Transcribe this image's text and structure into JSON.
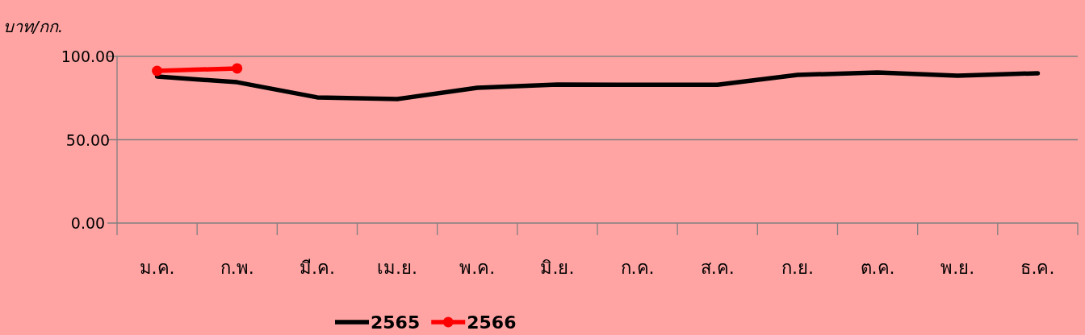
{
  "chart_data": {
    "type": "line",
    "ylabel": "บาท/กก.",
    "categories": [
      "ม.ค.",
      "ก.พ.",
      "มี.ค.",
      "เม.ย.",
      "พ.ค.",
      "มิ.ย.",
      "ก.ค.",
      "ส.ค.",
      "ก.ย.",
      "ต.ค.",
      "พ.ย.",
      "ธ.ค."
    ],
    "series": [
      {
        "name": "2565",
        "color": "#000000",
        "marker": "none",
        "values": [
          87.9,
          84.5,
          75.4,
          74.4,
          81.2,
          83.1,
          83.0,
          83.0,
          88.9,
          90.3,
          88.4,
          89.9
        ]
      },
      {
        "name": "2566",
        "color": "#ff0000",
        "marker": "circle",
        "values": [
          91.3,
          92.8,
          null,
          null,
          null,
          null,
          null,
          null,
          null,
          null,
          null,
          null
        ]
      }
    ],
    "ylim": [
      0,
      100
    ],
    "yticks": [
      {
        "value": 0,
        "label": "0.00"
      },
      {
        "value": 50,
        "label": "50.00"
      },
      {
        "value": 100,
        "label": "100.00"
      }
    ],
    "grid": "y",
    "legend": "bottom"
  }
}
